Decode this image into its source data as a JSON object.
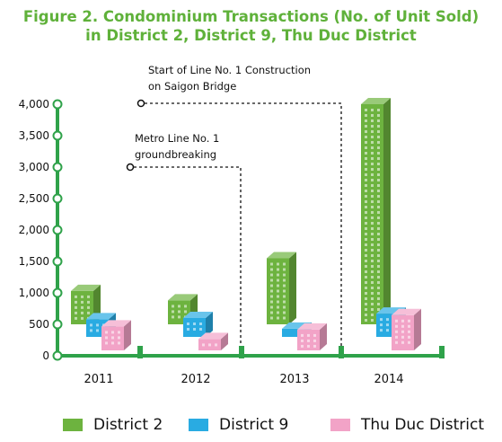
{
  "title_line1": "Figure 2. Condominium Transactions (No. of Unit Sold)",
  "title_line2": "in District 2, District 9, Thu Duc District",
  "chart_data": {
    "type": "bar",
    "title": "Figure 2. Condominium Transactions (No. of Unit Sold) in District 2, District 9, Thu Duc District",
    "categories": [
      "2011",
      "2012",
      "2013",
      "2014"
    ],
    "series": [
      {
        "name": "District 2",
        "values": [
          530,
          380,
          1050,
          3500
        ],
        "color": "#6db33f"
      },
      {
        "name": "District 9",
        "values": [
          280,
          300,
          130,
          370
        ],
        "color": "#29abe2"
      },
      {
        "name": "Thu Duc District",
        "values": [
          380,
          180,
          330,
          560
        ],
        "color": "#f2a3c7"
      }
    ],
    "ylim": [
      0,
      4000
    ],
    "yticks": [
      "0",
      "500",
      "1,000",
      "1,500",
      "2,000",
      "2,500",
      "3,000",
      "3,500",
      "4,000"
    ],
    "annotations": [
      {
        "text_lines": [
          "Metro Line No. 1",
          "groundbreaking"
        ],
        "category": "2012"
      },
      {
        "text_lines": [
          "Start of Line No. 1 Construction",
          "on Saigon Bridge"
        ],
        "category": "2013"
      }
    ],
    "legend_position": "bottom",
    "grid": false
  }
}
